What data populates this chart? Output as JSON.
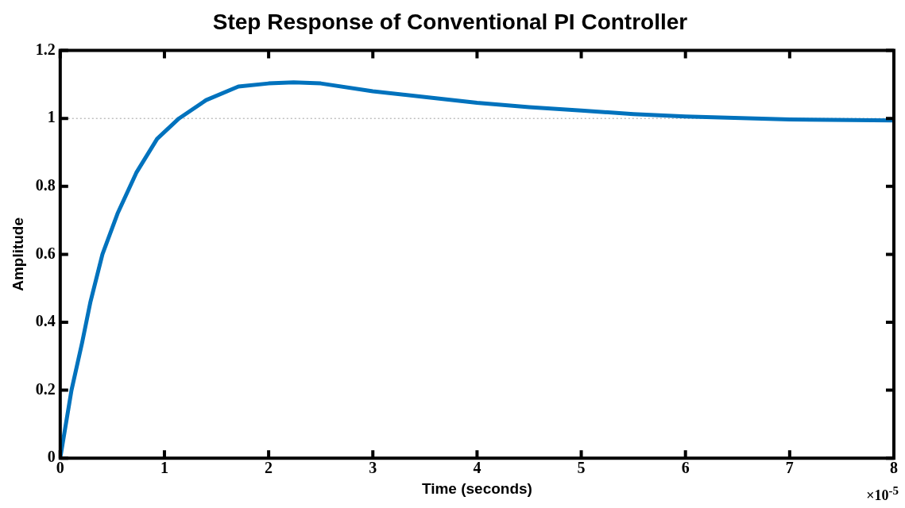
{
  "chart_data": {
    "type": "line",
    "title": "Step Response of Conventional PI Controller",
    "xlabel": "Time (seconds)",
    "ylabel": "Amplitude",
    "x": [
      0,
      0.108,
      0.21,
      0.29,
      0.405,
      0.55,
      0.73,
      0.93,
      1.14,
      1.4,
      1.71,
      2.0,
      2.24,
      2.5,
      3.0,
      3.5,
      4.0,
      4.5,
      5.0,
      5.5,
      6.0,
      7.0,
      8.0
    ],
    "series": [
      {
        "color": "#0072bd",
        "values": [
          0,
          0.2,
          0.34,
          0.46,
          0.6,
          0.72,
          0.84,
          0.94,
          1.0,
          1.054,
          1.094,
          1.103,
          1.106,
          1.103,
          1.08,
          1.063,
          1.046,
          1.033,
          1.023,
          1.013,
          1.006,
          0.997,
          0.994
        ]
      }
    ],
    "xlim": [
      0,
      8
    ],
    "xticks": [
      0,
      1,
      2,
      3,
      4,
      5,
      6,
      7,
      8
    ],
    "ylim": [
      0,
      1.2
    ],
    "yticks": [
      0,
      0.2,
      0.4,
      0.6,
      0.8,
      1,
      1.2
    ],
    "ref_lines": [
      {
        "axis": "y",
        "value": 1,
        "color": "#a0a0a0",
        "line_style": "dotted"
      }
    ],
    "annotations": [
      "×10$^{-5}$"
    ],
    "grid": false,
    "legend": false,
    "marker": "none",
    "line_style": "solid"
  }
}
